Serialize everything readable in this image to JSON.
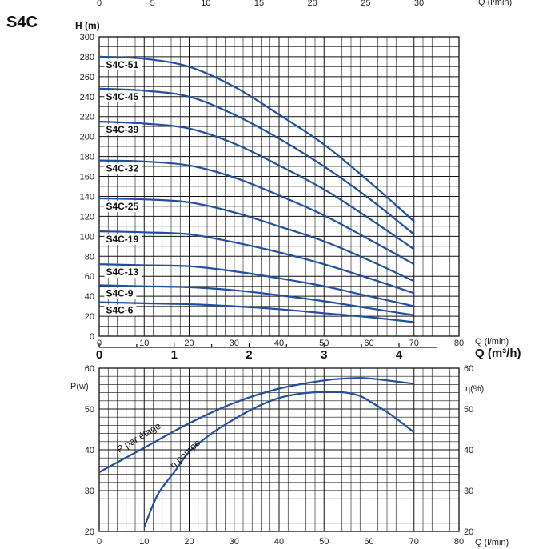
{
  "page_title": "S4C",
  "colors": {
    "curve": "#1f4f9e",
    "grid": "#111111"
  },
  "chart_data": [
    {
      "type": "line",
      "ylabel": "H (m)",
      "xlabel": "Q (l/min)",
      "xlim": [
        0,
        80
      ],
      "ylim": [
        0,
        300
      ],
      "x_ticks": [
        0,
        10,
        20,
        30,
        40,
        50,
        60,
        70,
        80
      ],
      "y_ticks": [
        0,
        20,
        40,
        60,
        80,
        100,
        120,
        140,
        160,
        180,
        200,
        220,
        240,
        260,
        280,
        300
      ],
      "top_axis": {
        "label": "Q (l/min)",
        "ticks": [
          0,
          5,
          10,
          15,
          20,
          25,
          30
        ],
        "ticks_text": [
          "0",
          "5",
          "10",
          "15",
          "20",
          "25",
          "30"
        ]
      },
      "secondary_x": {
        "label": "Q (m³/h)",
        "ticks": [
          0,
          1,
          2,
          3,
          4
        ],
        "ticks_text": [
          "0",
          "1",
          "2",
          "3",
          "4"
        ]
      },
      "grid": true,
      "series": [
        {
          "name": "S4C-51",
          "x": [
            0,
            10,
            20,
            30,
            40,
            50,
            60,
            70
          ],
          "y": [
            280,
            278,
            270,
            250,
            222,
            192,
            155,
            115
          ]
        },
        {
          "name": "S4C-45",
          "x": [
            0,
            10,
            20,
            30,
            40,
            50,
            60,
            70
          ],
          "y": [
            248,
            246,
            240,
            222,
            198,
            170,
            138,
            102
          ]
        },
        {
          "name": "S4C-39",
          "x": [
            0,
            10,
            20,
            30,
            40,
            50,
            60,
            70
          ],
          "y": [
            215,
            213,
            208,
            193,
            171,
            147,
            118,
            87
          ]
        },
        {
          "name": "S4C-32",
          "x": [
            0,
            10,
            20,
            30,
            40,
            50,
            60,
            70
          ],
          "y": [
            176,
            175,
            171,
            159,
            141,
            121,
            97,
            72
          ]
        },
        {
          "name": "S4C-25",
          "x": [
            0,
            10,
            20,
            30,
            40,
            50,
            60,
            70
          ],
          "y": [
            138,
            137,
            134,
            124,
            110,
            95,
            76,
            55
          ]
        },
        {
          "name": "S4C-19",
          "x": [
            0,
            10,
            20,
            30,
            40,
            50,
            60,
            70
          ],
          "y": [
            105,
            104,
            102,
            94,
            84,
            72,
            58,
            43
          ]
        },
        {
          "name": "S4C-13",
          "x": [
            0,
            10,
            20,
            30,
            40,
            50,
            60,
            70
          ],
          "y": [
            72,
            71,
            70,
            65,
            58,
            50,
            40,
            30
          ]
        },
        {
          "name": "S4C-9",
          "x": [
            0,
            10,
            20,
            30,
            40,
            50,
            60,
            70
          ],
          "y": [
            51,
            50,
            49,
            46,
            41,
            35,
            28,
            21
          ]
        },
        {
          "name": "S4C-6",
          "x": [
            0,
            10,
            20,
            30,
            40,
            50,
            60,
            70
          ],
          "y": [
            34,
            33,
            32,
            30,
            27,
            23,
            19,
            14
          ]
        }
      ]
    },
    {
      "type": "line",
      "xlabel": "Q (l/min)",
      "ylabel": "P(w)",
      "ylabel_right": "η(%)",
      "xlim": [
        0,
        80
      ],
      "ylim": [
        20,
        60
      ],
      "x_ticks": [
        0,
        10,
        20,
        30,
        40,
        50,
        60,
        70,
        80
      ],
      "y_ticks": [
        20,
        30,
        40,
        50,
        60
      ],
      "grid": true,
      "series": [
        {
          "name": "P par étage",
          "x": [
            0,
            10,
            20,
            30,
            40,
            50,
            55,
            60,
            70
          ],
          "y": [
            34.5,
            40.5,
            46.5,
            51.5,
            55,
            57,
            57.5,
            57.5,
            56.2
          ]
        },
        {
          "name": "η pompe",
          "x": [
            10,
            13,
            17,
            20,
            25,
            30,
            35,
            40,
            45,
            50,
            55,
            58,
            60,
            65,
            70
          ],
          "y": [
            21,
            29,
            35,
            39.5,
            44,
            47.5,
            50.5,
            52.7,
            53.8,
            54.2,
            54,
            53.2,
            52,
            48.5,
            44.3
          ]
        }
      ]
    }
  ]
}
